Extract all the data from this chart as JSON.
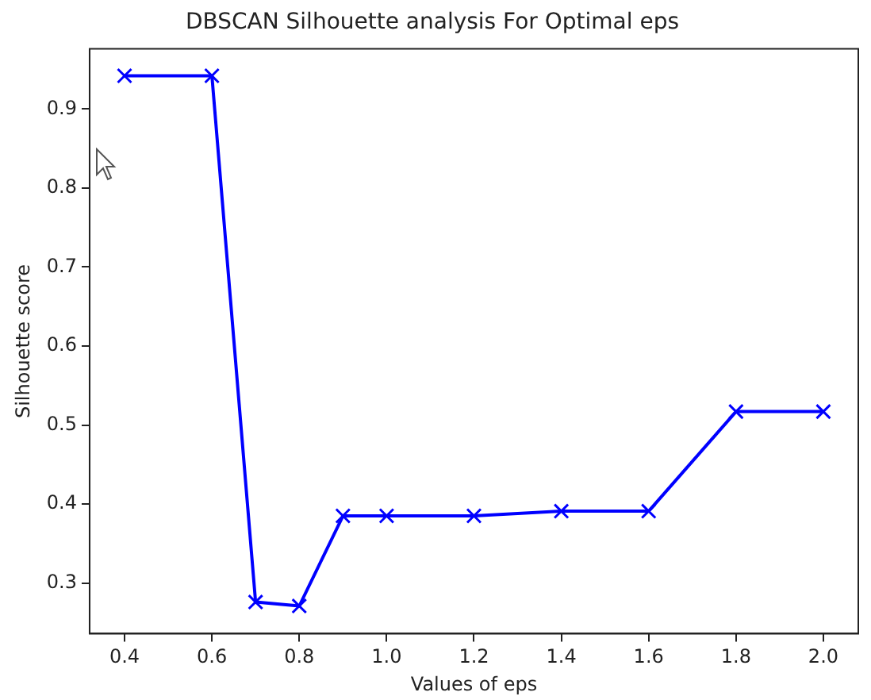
{
  "chart_data": {
    "type": "line",
    "title": "DBSCAN Silhouette analysis For Optimal eps",
    "xlabel": "Values of eps",
    "ylabel": "Silhouette score",
    "x": [
      0.4,
      0.6,
      0.7,
      0.8,
      0.9,
      1.0,
      1.2,
      1.4,
      1.6,
      1.8,
      2.0
    ],
    "series": [
      {
        "color": "#0000ff",
        "values": [
          0.942,
          0.942,
          0.276,
          0.271,
          0.385,
          0.385,
          0.385,
          0.391,
          0.391,
          0.517,
          0.517
        ]
      }
    ],
    "xlim": [
      0.32,
      2.08
    ],
    "xticks": [
      {
        "value": 0.4,
        "label": "0.4"
      },
      {
        "value": 0.6,
        "label": "0.6"
      },
      {
        "value": 0.8,
        "label": "0.8"
      },
      {
        "value": 1.0,
        "label": "1.0"
      },
      {
        "value": 1.2,
        "label": "1.2"
      },
      {
        "value": 1.4,
        "label": "1.4"
      },
      {
        "value": 1.6,
        "label": "1.6"
      },
      {
        "value": 1.8,
        "label": "1.8"
      },
      {
        "value": 2.0,
        "label": "2.0"
      }
    ],
    "ylim": [
      0.236,
      0.976
    ],
    "yticks": [
      0.3,
      0.4,
      0.5,
      0.6,
      0.7,
      0.8,
      0.9
    ],
    "grid": false,
    "legend": false,
    "marker": "cross",
    "line_style": "solid"
  }
}
